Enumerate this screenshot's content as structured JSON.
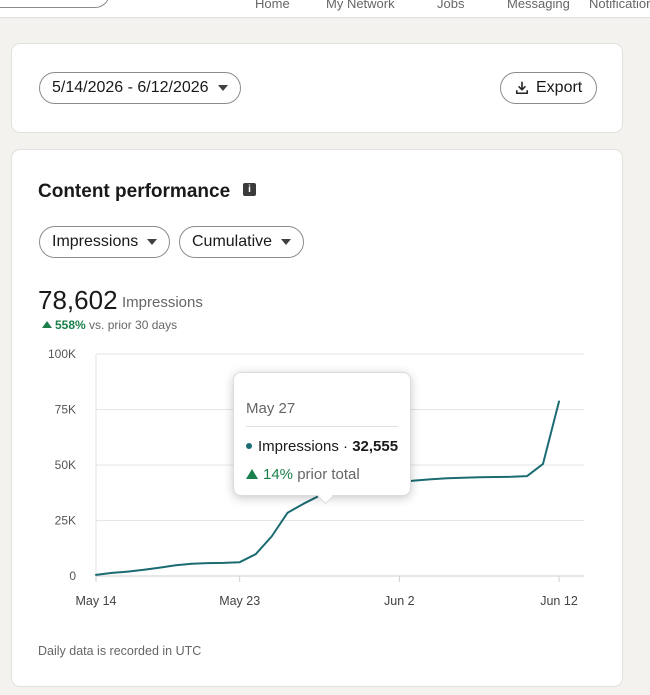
{
  "nav": {
    "items": [
      "Home",
      "My Network",
      "Jobs",
      "Messaging",
      "Notifications"
    ]
  },
  "filters": {
    "date_range": "5/14/2026 - 6/12/2026",
    "export_label": "Export"
  },
  "card": {
    "title": "Content performance",
    "metric_dropdown": "Impressions",
    "mode_dropdown": "Cumulative",
    "total": "78,602",
    "total_label": "Impressions",
    "change_pct": "558%",
    "change_text": "vs. prior 30 days",
    "footnote": "Daily data is recorded in UTC"
  },
  "tooltip": {
    "date": "May 27",
    "series": "Impressions",
    "value": "32,555",
    "change_pct": "14%",
    "change_text": "prior total"
  },
  "colors": {
    "line": "#1b6b73",
    "positive": "#1a7f4b"
  },
  "chart_data": {
    "type": "line",
    "y_ticks": [
      0,
      25000,
      50000,
      75000,
      100000
    ],
    "y_tick_labels": [
      "0",
      "25K",
      "50K",
      "75K",
      "100K"
    ],
    "ylim": [
      0,
      100000
    ],
    "x_tick_labels": [
      "May 14",
      "May 23",
      "Jun 2",
      "Jun 12"
    ],
    "x_tick_positions": [
      0,
      9,
      19,
      29
    ],
    "x": [
      "May 14",
      "May 15",
      "May 16",
      "May 17",
      "May 18",
      "May 19",
      "May 20",
      "May 21",
      "May 22",
      "May 23",
      "May 24",
      "May 25",
      "May 26",
      "May 27",
      "May 28",
      "May 29",
      "May 30",
      "May 31",
      "Jun 1",
      "Jun 2",
      "Jun 3",
      "Jun 4",
      "Jun 5",
      "Jun 6",
      "Jun 7",
      "Jun 8",
      "Jun 9",
      "Jun 10",
      "Jun 11",
      "Jun 12"
    ],
    "series": [
      {
        "values": [
          500,
          1400,
          2000,
          2800,
          3800,
          4800,
          5500,
          5800,
          5900,
          6200,
          9800,
          17800,
          28500,
          32555,
          36200,
          38000,
          39500,
          40500,
          41500,
          42300,
          43000,
          43600,
          44000,
          44300,
          44500,
          44600,
          44700,
          45000,
          50500,
          78602
        ]
      }
    ],
    "grid": true,
    "legend": "none"
  }
}
